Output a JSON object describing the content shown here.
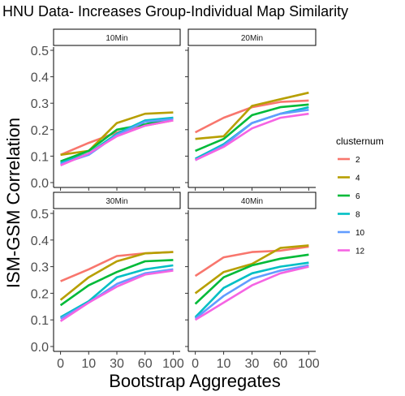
{
  "chart_data": {
    "type": "line",
    "title": "HNU Data- Increases Group-Individual Map Similarity",
    "xlabel": "Bootstrap Aggregates",
    "ylabel": "ISM-GSM Correlation",
    "x": [
      0,
      10,
      30,
      60,
      100
    ],
    "x_ticks": [
      "0",
      "10",
      "30",
      "60",
      "100"
    ],
    "y_ticks": [
      "0.0",
      "0.1",
      "0.2",
      "0.3",
      "0.4",
      "0.5"
    ],
    "ylim": [
      0,
      0.5
    ],
    "grid": false,
    "legend": {
      "title": "clusternum",
      "position": "right",
      "entries": [
        "2",
        "4",
        "6",
        "8",
        "10",
        "12"
      ]
    },
    "colors": {
      "2": "#F8766D",
      "4": "#B79F00",
      "6": "#00BA38",
      "8": "#00BFC4",
      "10": "#619CFF",
      "12": "#F564E3"
    },
    "facets": [
      {
        "label": "10Min",
        "series": [
          {
            "name": "2",
            "values": [
              0.105,
              0.15,
              0.19,
              0.215,
              0.235
            ]
          },
          {
            "name": "4",
            "values": [
              0.105,
              0.12,
              0.225,
              0.26,
              0.265
            ]
          },
          {
            "name": "6",
            "values": [
              0.08,
              0.12,
              0.2,
              0.22,
              0.245
            ]
          },
          {
            "name": "8",
            "values": [
              0.075,
              0.11,
              0.185,
              0.235,
              0.245
            ]
          },
          {
            "name": "10",
            "values": [
              0.07,
              0.105,
              0.18,
              0.23,
              0.24
            ]
          },
          {
            "name": "12",
            "values": [
              0.065,
              0.11,
              0.175,
              0.215,
              0.235
            ]
          }
        ]
      },
      {
        "label": "20Min",
        "series": [
          {
            "name": "2",
            "values": [
              0.19,
              0.245,
              0.285,
              0.305,
              0.31
            ]
          },
          {
            "name": "4",
            "values": [
              0.165,
              0.175,
              0.29,
              0.315,
              0.34
            ]
          },
          {
            "name": "6",
            "values": [
              0.12,
              0.165,
              0.255,
              0.285,
              0.295
            ]
          },
          {
            "name": "8",
            "values": [
              0.09,
              0.145,
              0.225,
              0.26,
              0.285
            ]
          },
          {
            "name": "10",
            "values": [
              0.085,
              0.14,
              0.225,
              0.26,
              0.275
            ]
          },
          {
            "name": "12",
            "values": [
              0.085,
              0.135,
              0.205,
              0.245,
              0.26
            ]
          }
        ]
      },
      {
        "label": "30Min",
        "series": [
          {
            "name": "2",
            "values": [
              0.245,
              0.29,
              0.34,
              0.35,
              0.355
            ]
          },
          {
            "name": "4",
            "values": [
              0.175,
              0.26,
              0.32,
              0.35,
              0.355
            ]
          },
          {
            "name": "6",
            "values": [
              0.155,
              0.23,
              0.28,
              0.32,
              0.325
            ]
          },
          {
            "name": "8",
            "values": [
              0.11,
              0.17,
              0.26,
              0.29,
              0.305
            ]
          },
          {
            "name": "10",
            "values": [
              0.105,
              0.165,
              0.235,
              0.275,
              0.29
            ]
          },
          {
            "name": "12",
            "values": [
              0.095,
              0.165,
              0.225,
              0.27,
              0.285
            ]
          }
        ]
      },
      {
        "label": "40Min",
        "series": [
          {
            "name": "2",
            "values": [
              0.265,
              0.335,
              0.355,
              0.36,
              0.375
            ]
          },
          {
            "name": "4",
            "values": [
              0.2,
              0.28,
              0.31,
              0.37,
              0.38
            ]
          },
          {
            "name": "6",
            "values": [
              0.16,
              0.26,
              0.305,
              0.33,
              0.345
            ]
          },
          {
            "name": "8",
            "values": [
              0.11,
              0.22,
              0.275,
              0.3,
              0.315
            ]
          },
          {
            "name": "10",
            "values": [
              0.105,
              0.19,
              0.255,
              0.285,
              0.305
            ]
          },
          {
            "name": "12",
            "values": [
              0.1,
              0.165,
              0.23,
              0.275,
              0.3
            ]
          }
        ]
      }
    ]
  }
}
